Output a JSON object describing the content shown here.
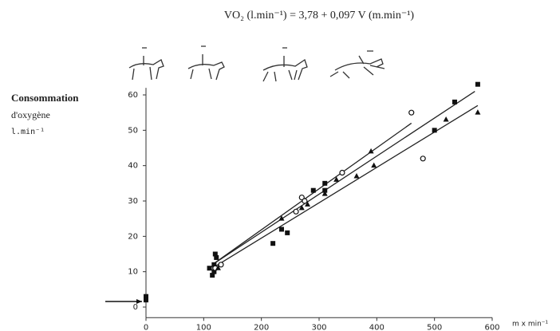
{
  "chart_data": {
    "type": "scatter",
    "title": "VO₂ (l.min⁻¹) = 3,78 + 0,097 V (m.min⁻¹)",
    "ylabel": [
      "Consommation",
      "d'oxygène",
      "l.min⁻¹"
    ],
    "xlabel": "m x min⁻¹",
    "xlim": [
      0,
      600
    ],
    "ylim": [
      -3,
      62
    ],
    "xticks": [
      0,
      100,
      200,
      300,
      400,
      500,
      600
    ],
    "yticks": [
      0,
      10,
      20,
      30,
      40,
      50,
      60
    ],
    "series": [
      {
        "marker": "square",
        "color": "#111",
        "x": [
          0,
          0,
          110,
          115,
          118,
          120,
          122,
          118,
          220,
          235,
          245,
          290,
          310,
          310,
          500,
          535,
          575
        ],
        "values": [
          3,
          2,
          11,
          9,
          12,
          15,
          14,
          10,
          18,
          22,
          21,
          33,
          35,
          33,
          50,
          58,
          63
        ]
      },
      {
        "marker": "circle",
        "color": "#111",
        "x": [
          120,
          130,
          270,
          275,
          260,
          340,
          460,
          480
        ],
        "values": [
          11,
          12,
          31,
          30,
          27,
          38,
          55,
          42
        ]
      },
      {
        "marker": "triangle",
        "color": "#111",
        "x": [
          125,
          235,
          270,
          280,
          310,
          330,
          390,
          395,
          365,
          520,
          575
        ],
        "values": [
          11,
          25,
          28,
          29,
          32,
          36,
          44,
          40,
          37,
          53,
          55
        ]
      }
    ],
    "lines": [
      {
        "x": [
          115,
          570
        ],
        "values": [
          12,
          61
        ]
      },
      {
        "x": [
          115,
          460
        ],
        "values": [
          12,
          52
        ]
      },
      {
        "x": [
          115,
          575
        ],
        "values": [
          11,
          57
        ]
      }
    ]
  }
}
